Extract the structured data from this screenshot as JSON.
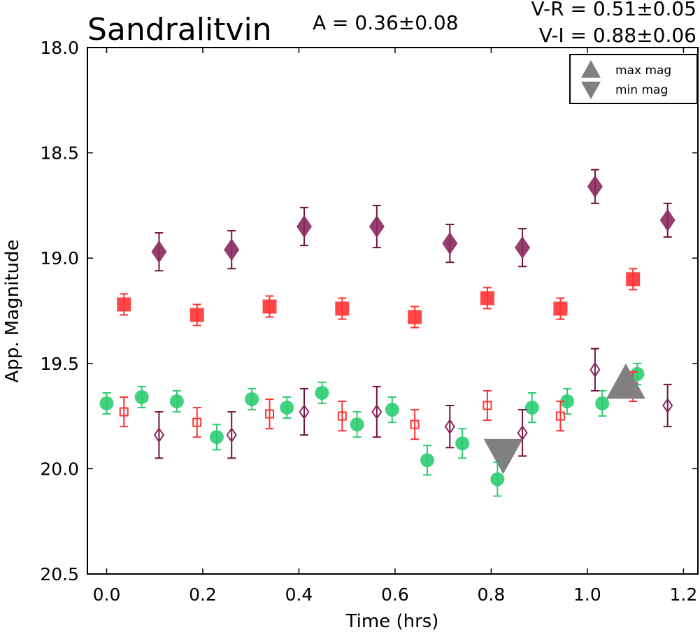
{
  "chart_data": {
    "type": "scatter",
    "title": "Sandralitvin",
    "annotations": {
      "amplitude": "A  = 0.36±0.08",
      "v_r": "V-R = 0.51±0.05",
      "v_i": "V-I  = 0.88±0.06"
    },
    "xlabel": "Time (hrs)",
    "ylabel": "App. Magnitude",
    "xlim": [
      -0.04,
      1.23
    ],
    "ylim": [
      20.5,
      18.0
    ],
    "y_inverted": true,
    "x_ticks": [
      "0.0",
      "0.2",
      "0.4",
      "0.6",
      "0.8",
      "1.0",
      "1.2"
    ],
    "y_ticks": [
      "18.0",
      "18.5",
      "19.0",
      "19.5",
      "20.0",
      "20.5"
    ],
    "grid": false,
    "legend": {
      "placement": "top-right",
      "entries": [
        {
          "label": "max mag",
          "marker": "triangle-up",
          "color": "#808080"
        },
        {
          "label": "min mag",
          "marker": "triangle-down",
          "color": "#808080"
        }
      ]
    },
    "series": [
      {
        "marker": "circle",
        "filled": true,
        "color": "#2ecc71",
        "err_color": "#2ecc71",
        "x": [
          0.0,
          0.073,
          0.146,
          0.229,
          0.302,
          0.375,
          0.448,
          0.521,
          0.594,
          0.667,
          0.74,
          0.813,
          0.885,
          0.958,
          1.031,
          1.104
        ],
        "y": [
          19.69,
          19.66,
          19.68,
          19.85,
          19.67,
          19.71,
          19.64,
          19.79,
          19.72,
          19.96,
          19.88,
          20.05,
          19.71,
          19.68,
          19.69,
          19.55
        ],
        "err": [
          0.05,
          0.05,
          0.05,
          0.06,
          0.05,
          0.05,
          0.05,
          0.06,
          0.06,
          0.07,
          0.07,
          0.08,
          0.07,
          0.06,
          0.06,
          0.05
        ]
      },
      {
        "marker": "square",
        "filled": true,
        "color": "#ff3333",
        "err_color": "#ff3333",
        "x": [
          0.036,
          0.188,
          0.339,
          0.49,
          0.641,
          0.792,
          0.944,
          1.095
        ],
        "y": [
          19.22,
          19.27,
          19.23,
          19.24,
          19.28,
          19.19,
          19.24,
          19.1
        ],
        "err": [
          0.05,
          0.05,
          0.05,
          0.05,
          0.05,
          0.05,
          0.05,
          0.05
        ]
      },
      {
        "marker": "diamond",
        "filled": true,
        "color": "#8b2a5e",
        "err_color": "#70123f",
        "x": [
          0.109,
          0.26,
          0.411,
          0.562,
          0.714,
          0.865,
          1.016,
          1.167
        ],
        "y": [
          18.97,
          18.96,
          18.85,
          18.85,
          18.93,
          18.95,
          18.66,
          18.82
        ],
        "err": [
          0.09,
          0.09,
          0.09,
          0.1,
          0.09,
          0.09,
          0.08,
          0.08
        ]
      },
      {
        "marker": "square",
        "filled": false,
        "color": "#ff3333",
        "err_color": "#ff3333",
        "x": [
          0.036,
          0.188,
          0.339,
          0.49,
          0.641,
          0.792,
          0.944,
          1.095
        ],
        "y": [
          19.73,
          19.78,
          19.74,
          19.75,
          19.79,
          19.7,
          19.75,
          19.61
        ],
        "err": [
          0.07,
          0.07,
          0.07,
          0.07,
          0.07,
          0.07,
          0.07,
          0.07
        ]
      },
      {
        "marker": "diamond",
        "filled": false,
        "color": "#8b2a5e",
        "err_color": "#70123f",
        "x": [
          0.109,
          0.26,
          0.411,
          0.562,
          0.714,
          0.865,
          1.016,
          1.167
        ],
        "y": [
          19.84,
          19.84,
          19.73,
          19.73,
          19.8,
          19.83,
          19.53,
          19.7
        ],
        "err": [
          0.11,
          0.11,
          0.11,
          0.12,
          0.1,
          0.11,
          0.1,
          0.1
        ]
      }
    ],
    "extrema": {
      "max_mag": {
        "x": 1.08,
        "y": 19.6,
        "marker": "triangle-up",
        "color": "#808080"
      },
      "min_mag": {
        "x": 0.825,
        "y": 19.92,
        "marker": "triangle-down",
        "color": "#808080"
      }
    }
  }
}
